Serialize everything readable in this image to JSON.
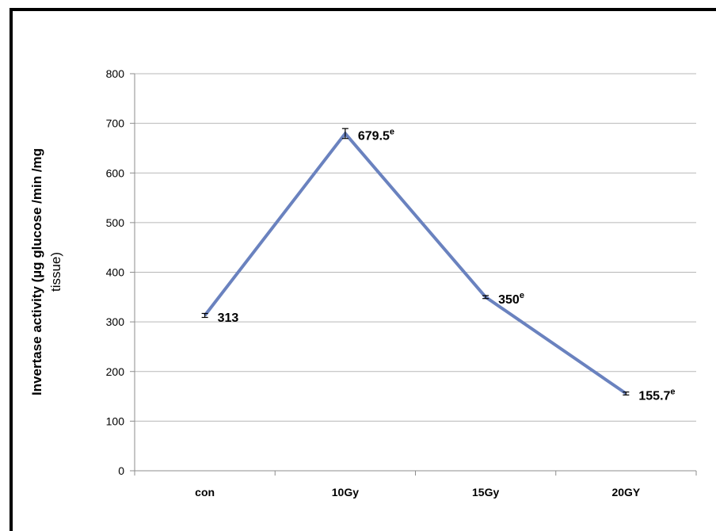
{
  "chart_data": {
    "type": "line",
    "title": "",
    "xlabel": "",
    "ylabel_lines": [
      "Invertase activity (µg glucose /min /mg",
      "tissue)"
    ],
    "categories": [
      "con",
      "10Gy",
      "15Gy",
      "20GY"
    ],
    "series": [
      {
        "values": [
          313,
          679.5,
          350,
          155.7
        ],
        "error": [
          4,
          10,
          3,
          3
        ],
        "labels": [
          "313",
          "679.5",
          "350",
          "155.7"
        ],
        "superscripts": [
          "",
          "e",
          "e",
          "e"
        ]
      }
    ],
    "ylim": [
      0,
      800
    ],
    "yticks": [
      "0",
      "100",
      "200",
      "300",
      "400",
      "500",
      "600",
      "700",
      "800"
    ],
    "grid": true,
    "legend": "none",
    "colors": {
      "line": "#6a82bf",
      "grid": "#b7b7b7",
      "axis": "#8c8c8c"
    }
  }
}
